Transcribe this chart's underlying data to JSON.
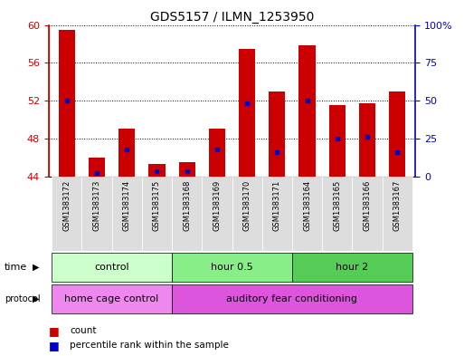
{
  "title": "GDS5157 / ILMN_1253950",
  "samples": [
    "GSM1383172",
    "GSM1383173",
    "GSM1383174",
    "GSM1383175",
    "GSM1383168",
    "GSM1383169",
    "GSM1383170",
    "GSM1383171",
    "GSM1383164",
    "GSM1383165",
    "GSM1383166",
    "GSM1383167"
  ],
  "count_values": [
    59.5,
    46.0,
    49.0,
    45.3,
    45.5,
    49.0,
    57.5,
    53.0,
    57.8,
    51.5,
    51.7,
    53.0
  ],
  "percentile_values": [
    52.0,
    44.3,
    46.8,
    44.5,
    44.5,
    46.8,
    51.7,
    46.5,
    52.0,
    48.0,
    48.2,
    46.5
  ],
  "ymin": 44,
  "ymax": 60,
  "yticks": [
    44,
    48,
    52,
    56,
    60
  ],
  "right_yticks": [
    0,
    25,
    50,
    75,
    100
  ],
  "right_ytick_labels": [
    "0",
    "25",
    "50",
    "75",
    "100%"
  ],
  "bar_color": "#cc0000",
  "percentile_color": "#0000cc",
  "time_groups": [
    {
      "label": "control",
      "start": 0,
      "end": 3,
      "color": "#ccffcc"
    },
    {
      "label": "hour 0.5",
      "start": 4,
      "end": 7,
      "color": "#88ee88"
    },
    {
      "label": "hour 2",
      "start": 8,
      "end": 11,
      "color": "#55cc55"
    }
  ],
  "protocol_groups": [
    {
      "label": "home cage control",
      "start": 0,
      "end": 3,
      "color": "#ee88ee"
    },
    {
      "label": "auditory fear conditioning",
      "start": 4,
      "end": 11,
      "color": "#dd55dd"
    }
  ],
  "bg_color": "#ffffff",
  "left_axis_color": "#cc0000",
  "right_axis_color": "#0000cc",
  "tick_label_bg": "#dddddd"
}
